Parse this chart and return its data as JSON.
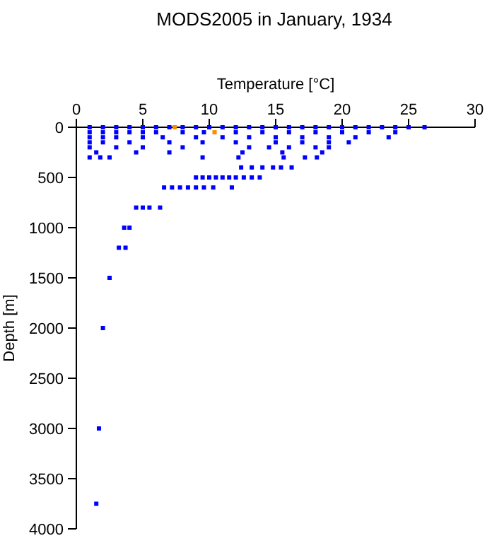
{
  "chart_data": {
    "type": "scatter",
    "title": "MODS2005 in January, 1934",
    "xlabel": "Temperature [°C]",
    "ylabel": "Depth [m]",
    "xlim": [
      0,
      30
    ],
    "xticks": [
      0,
      5,
      10,
      15,
      20,
      25,
      30
    ],
    "ylim": [
      4000,
      0
    ],
    "yticks": [
      0,
      500,
      1000,
      1500,
      2000,
      2500,
      3000,
      3500,
      4000
    ],
    "grid": false,
    "marker": "square",
    "series": [
      {
        "color": "#0000ff",
        "x": [
          1,
          2,
          3,
          4,
          5,
          6,
          7,
          8,
          9,
          10,
          11,
          12,
          13,
          14,
          15,
          16,
          17,
          18,
          19,
          20,
          21,
          22,
          23,
          24,
          25,
          26.2,
          1,
          2,
          3,
          4,
          5,
          6,
          8,
          9.6,
          12,
          14,
          16,
          18,
          20,
          22,
          24,
          1,
          2,
          3,
          5,
          6.5,
          9,
          11,
          13,
          15,
          17,
          19,
          21,
          23.5,
          1,
          2,
          4,
          7,
          9.5,
          12,
          15,
          17,
          19,
          20.5,
          1,
          3,
          5,
          8,
          13,
          14.5,
          16,
          18,
          19,
          1.5,
          4.5,
          7,
          12.5,
          15.5,
          18.5,
          1,
          1.8,
          2.5,
          9.5,
          12.2,
          15.6,
          17.2,
          18.1,
          12.4,
          13.2,
          14,
          14.8,
          15.4,
          16.2,
          9,
          9.5,
          10,
          10.5,
          11,
          11.5,
          12,
          12.6,
          13.2,
          13.8,
          6.6,
          7.2,
          7.8,
          8.4,
          9,
          9.6,
          10.3,
          11.7,
          4.5,
          5,
          5.5,
          6.3,
          3.6,
          4,
          3.2,
          3.7,
          2.5,
          2,
          1.7,
          1.5
        ],
        "values": [
          0,
          0,
          0,
          0,
          0,
          0,
          0,
          0,
          0,
          0,
          0,
          0,
          0,
          0,
          0,
          0,
          0,
          0,
          0,
          0,
          0,
          0,
          0,
          0,
          0,
          0,
          50,
          50,
          50,
          50,
          50,
          50,
          50,
          50,
          50,
          50,
          50,
          50,
          50,
          50,
          50,
          100,
          100,
          100,
          100,
          100,
          100,
          100,
          100,
          100,
          100,
          100,
          100,
          100,
          150,
          150,
          150,
          150,
          150,
          150,
          150,
          150,
          150,
          150,
          200,
          200,
          200,
          200,
          200,
          200,
          200,
          200,
          200,
          250,
          250,
          250,
          250,
          250,
          250,
          300,
          300,
          300,
          300,
          300,
          300,
          300,
          300,
          400,
          400,
          400,
          400,
          400,
          400,
          500,
          500,
          500,
          500,
          500,
          500,
          500,
          500,
          500,
          500,
          600,
          600,
          600,
          600,
          600,
          600,
          600,
          600,
          800,
          800,
          800,
          800,
          1000,
          1000,
          1200,
          1200,
          1500,
          2000,
          3000,
          3750
        ]
      },
      {
        "color": "#ff8c00",
        "x": [
          7.4,
          10.4
        ],
        "values": [
          0,
          50
        ]
      }
    ]
  }
}
